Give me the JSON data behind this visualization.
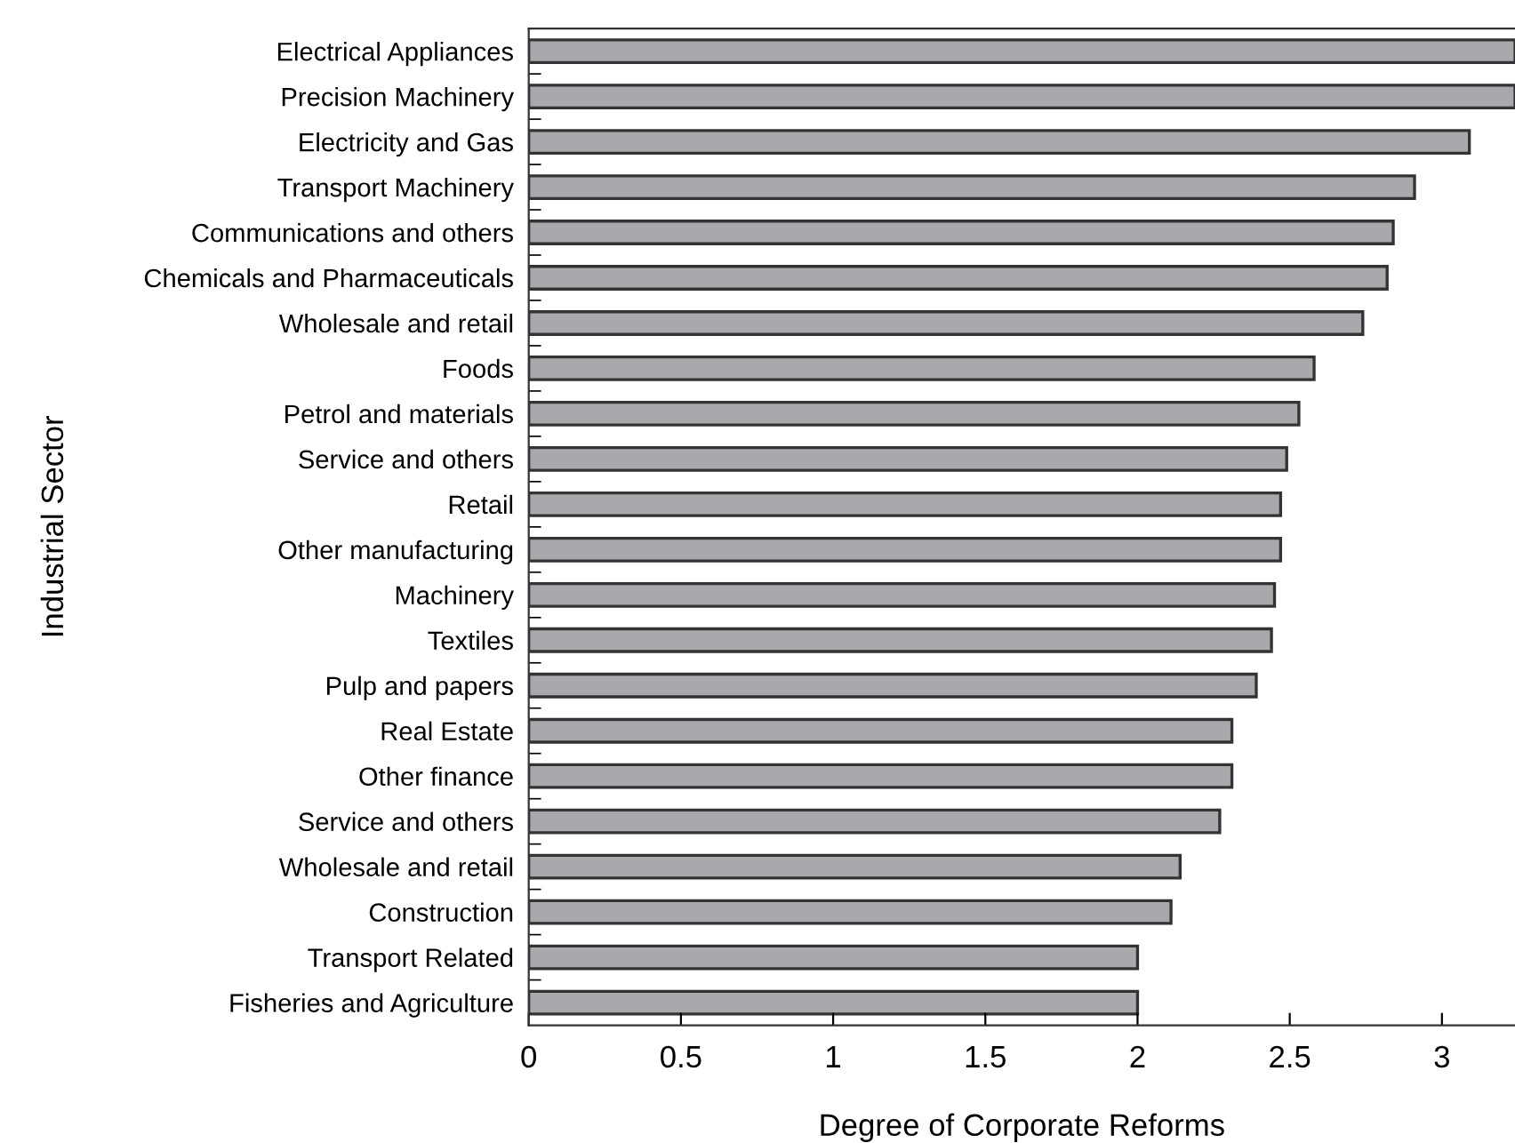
{
  "chart_data": {
    "type": "bar",
    "orientation": "horizontal",
    "xlabel": "Degree of Corporate Reforms",
    "ylabel": "Industrial Sector",
    "categories": [
      "Electrical Appliances",
      "Precision Machinery",
      "Electricity and Gas",
      "Transport Machinery",
      "Communications and others",
      "Chemicals and Pharmaceuticals",
      "Wholesale and retail",
      "Foods",
      "Petrol and materials",
      "Service and others",
      "Retail",
      "Other manufacturing",
      "Machinery",
      "Textiles",
      "Pulp and papers",
      "Real Estate",
      "Other finance",
      "Service and others",
      "Wholesale and retail",
      "Construction",
      "Transport Related",
      "Fisheries and Agriculture"
    ],
    "values": [
      3.24,
      3.24,
      3.09,
      2.91,
      2.84,
      2.82,
      2.74,
      2.58,
      2.53,
      2.49,
      2.47,
      2.47,
      2.45,
      2.44,
      2.39,
      2.31,
      2.31,
      2.27,
      2.14,
      2.11,
      2.0,
      2.0
    ],
    "color": "#a7a9ac",
    "xlim": [
      0,
      3.24
    ],
    "xticks": [
      0,
      0.5,
      1,
      1.5,
      2,
      2.5,
      3
    ],
    "grid": false,
    "legend": false
  }
}
